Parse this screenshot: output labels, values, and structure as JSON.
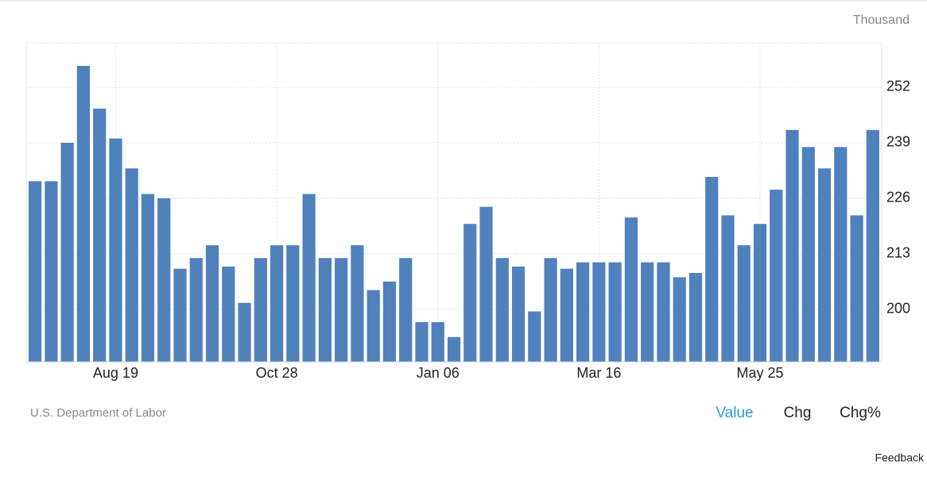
{
  "chart_data": {
    "type": "bar",
    "unit_label": "Thousand",
    "source": "U.S. Department of Labor",
    "tabs": [
      "Value",
      "Chg",
      "Chg%"
    ],
    "feedback": "Feedback",
    "color": "#4f81bd",
    "categories": [
      null,
      null,
      null,
      null,
      null,
      "Aug 19",
      null,
      null,
      null,
      null,
      null,
      null,
      null,
      null,
      null,
      "Oct 28",
      null,
      null,
      null,
      null,
      null,
      null,
      null,
      null,
      null,
      "Jan 06",
      null,
      null,
      null,
      null,
      null,
      null,
      null,
      null,
      null,
      "Mar 16",
      null,
      null,
      null,
      null,
      null,
      null,
      null,
      null,
      null,
      "May 25",
      null,
      null,
      null,
      null,
      null,
      null,
      null
    ],
    "values": [
      230,
      230,
      239,
      257,
      247,
      240,
      233,
      227,
      226,
      209.5,
      212,
      215,
      210,
      201.5,
      212,
      215,
      215,
      227,
      212,
      212,
      215,
      204.5,
      206.5,
      212,
      197,
      197,
      193.5,
      220,
      224,
      212,
      210,
      199.5,
      212,
      209.5,
      211,
      211,
      211,
      221.5,
      211,
      211,
      207.5,
      208.5,
      231,
      222,
      215,
      220,
      228,
      242,
      238,
      233,
      238,
      222,
      242
    ],
    "ylim": [
      187.7,
      262.4
    ],
    "yticks": [
      200,
      213,
      226,
      239,
      252
    ],
    "grid": true
  }
}
